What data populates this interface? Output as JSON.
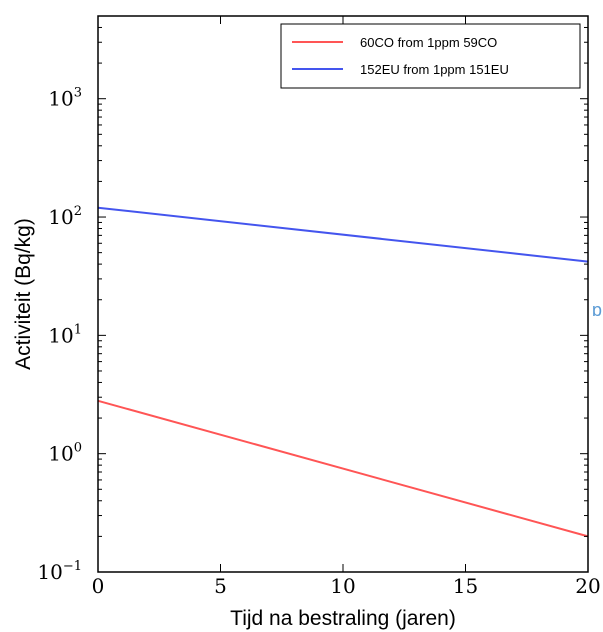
{
  "chart_data": {
    "type": "line",
    "title": "",
    "xlabel": "Tijd na bestraling (jaren)",
    "ylabel": "Activiteit  (Bq/kg)",
    "xlim": [
      0,
      20
    ],
    "ylim": [
      0.1,
      5000
    ],
    "yscale": "log",
    "grid": false,
    "legend_position": "top-right",
    "x_ticks": [
      {
        "value": 0,
        "label": "0"
      },
      {
        "value": 5,
        "label": "5"
      },
      {
        "value": 10,
        "label": "10"
      },
      {
        "value": 15,
        "label": "15"
      },
      {
        "value": 20,
        "label": "20"
      }
    ],
    "y_ticks": [
      {
        "value": 0.1,
        "base": "10",
        "exp": "−1"
      },
      {
        "value": 1,
        "base": "10",
        "exp": "0"
      },
      {
        "value": 10,
        "base": "10",
        "exp": "1"
      },
      {
        "value": 100,
        "base": "10",
        "exp": "2"
      },
      {
        "value": 1000,
        "base": "10",
        "exp": "3"
      }
    ],
    "series": [
      {
        "name": "60CO from 1ppm 59CO",
        "color": "#ff5555",
        "x": [
          0,
          20
        ],
        "y": [
          2.8,
          0.2
        ]
      },
      {
        "name": "152EU from 1ppm 151EU",
        "color": "#4455ee",
        "x": [
          0,
          20
        ],
        "y": [
          120,
          42
        ]
      }
    ]
  }
}
